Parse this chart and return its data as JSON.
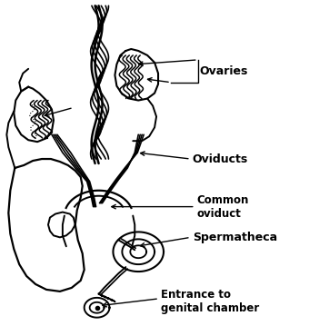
{
  "figsize": [
    3.62,
    3.59
  ],
  "dpi": 100,
  "bg_color": "#ffffff",
  "text_color": "#000000",
  "line_color": "#000000",
  "labels": {
    "ovaries": "Ovaries",
    "oviducts": "Oviducts",
    "common_oviduct": "Common\noviduct",
    "spermatheca": "Spermatheca",
    "entrance": "Entrance to\ngenital chamber"
  }
}
